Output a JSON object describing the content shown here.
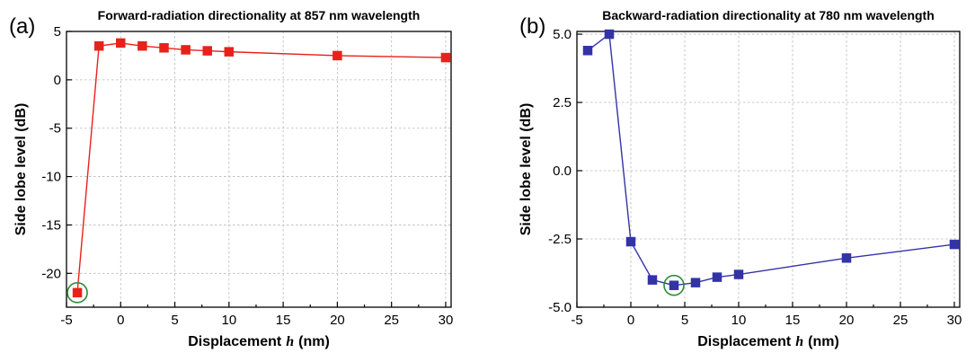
{
  "chart_data": [
    {
      "panel_label": "(a)",
      "type": "line",
      "title": "Forward-radiation directionality at 857 nm wavelength",
      "xlabel": "Displacement",
      "xlabel_var": "h",
      "xlabel_unit": "(nm)",
      "ylabel": "Side lobe level (dB)",
      "xlim": [
        -5,
        30.5
      ],
      "ylim": [
        -23.5,
        5
      ],
      "xticks": [
        -5,
        0,
        5,
        10,
        15,
        20,
        25,
        30
      ],
      "xtick_labels": [
        "-5",
        "0",
        "5",
        "10",
        "15",
        "20",
        "25",
        "30"
      ],
      "yticks": [
        5,
        0,
        -5,
        -10,
        -15,
        -20
      ],
      "ytick_labels": [
        "5",
        "0",
        "-5",
        "-10",
        "-15",
        "-20"
      ],
      "grid": true,
      "series": [
        {
          "color": "#e8211b",
          "marker": "square",
          "x": [
            -4,
            -2,
            0,
            2,
            4,
            6,
            8,
            10,
            20,
            30
          ],
          "y": [
            -22.0,
            3.5,
            3.8,
            3.5,
            3.3,
            3.1,
            3.0,
            2.9,
            2.5,
            2.3
          ]
        }
      ],
      "highlight": {
        "x": -4,
        "y": -22.0,
        "color": "#2d8a3a"
      }
    },
    {
      "panel_label": "(b)",
      "type": "line",
      "title": "Backward-radiation directionality at 780 nm wavelength",
      "xlabel": "Displacement",
      "xlabel_var": "h",
      "xlabel_unit": "(nm)",
      "ylabel": "Side lobe level (dB)",
      "xlim": [
        -5,
        30.5
      ],
      "ylim": [
        -5.0,
        5.1
      ],
      "xticks": [
        -5,
        0,
        5,
        10,
        15,
        20,
        25,
        30
      ],
      "xtick_labels": [
        "-5",
        "0",
        "5",
        "10",
        "15",
        "20",
        "25",
        "30"
      ],
      "yticks": [
        5.0,
        2.5,
        0.0,
        -2.5,
        -5.0
      ],
      "ytick_labels": [
        "5.0",
        "2.5",
        "0.0",
        "-2.5",
        "-5.0"
      ],
      "grid": true,
      "series": [
        {
          "color": "#3333a8",
          "marker": "square",
          "x": [
            -4,
            -2,
            0,
            2,
            4,
            6,
            8,
            10,
            20,
            30
          ],
          "y": [
            4.4,
            5.0,
            -2.6,
            -4.0,
            -4.2,
            -4.1,
            -3.9,
            -3.8,
            -3.2,
            -2.7
          ]
        }
      ],
      "highlight": {
        "x": 4,
        "y": -4.2,
        "color": "#2d8a3a"
      }
    }
  ]
}
